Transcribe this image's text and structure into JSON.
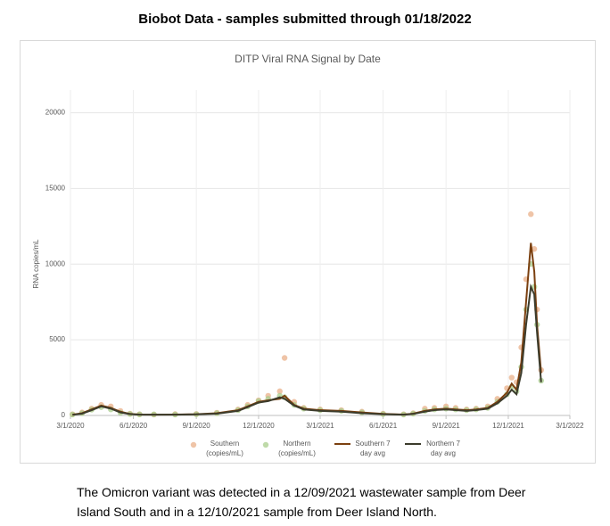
{
  "header": {
    "title": "Biobot Data - samples submitted through 01/18/2022"
  },
  "chart_data": {
    "type": "line",
    "title": "DITP Viral RNA Signal by Date",
    "y_label": "RNA copies/mL",
    "x": [
      "3/4/2020",
      "3/18/2020",
      "4/1/2020",
      "4/15/2020",
      "4/29/2020",
      "5/13/2020",
      "5/27/2020",
      "6/10/2020",
      "7/1/2020",
      "8/1/2020",
      "9/1/2020",
      "10/1/2020",
      "11/1/2020",
      "11/15/2020",
      "12/1/2020",
      "12/15/2020",
      "1/1/2021",
      "1/8/2021",
      "1/22/2021",
      "2/5/2021",
      "3/1/2021",
      "4/1/2021",
      "5/1/2021",
      "6/1/2021",
      "7/1/2021",
      "7/15/2021",
      "8/1/2021",
      "8/15/2021",
      "9/1/2021",
      "9/15/2021",
      "10/1/2021",
      "10/15/2021",
      "11/1/2021",
      "11/15/2021",
      "11/29/2021",
      "12/6/2021",
      "12/13/2021",
      "12/20/2021",
      "12/27/2021",
      "1/3/2022",
      "1/8/2022",
      "1/12/2022",
      "1/18/2022"
    ],
    "series": [
      {
        "name": "Southern (copies/mL)",
        "type": "scatter",
        "color": "#eab08a",
        "values": [
          80,
          200,
          450,
          700,
          600,
          300,
          120,
          80,
          60,
          90,
          100,
          180,
          400,
          700,
          1000,
          1300,
          1600,
          3800,
          900,
          500,
          400,
          350,
          250,
          120,
          80,
          150,
          450,
          500,
          600,
          500,
          400,
          450,
          600,
          1100,
          1800,
          2500,
          2200,
          4500,
          9000,
          13300,
          11000,
          7000,
          3000
        ]
      },
      {
        "name": "Northern (copies/mL)",
        "type": "scatter",
        "color": "#a9cd8c",
        "values": [
          60,
          150,
          380,
          550,
          400,
          180,
          100,
          70,
          70,
          60,
          80,
          150,
          350,
          600,
          950,
          1100,
          1300,
          1200,
          700,
          450,
          350,
          300,
          200,
          90,
          60,
          120,
          300,
          400,
          450,
          400,
          350,
          400,
          500,
          900,
          1400,
          1900,
          1600,
          3200,
          7000,
          10000,
          8500,
          6000,
          2300
        ]
      },
      {
        "name": "Southern 7 day avg",
        "type": "line",
        "color": "#7b4010",
        "values": [
          50,
          150,
          400,
          650,
          500,
          250,
          100,
          60,
          50,
          60,
          80,
          150,
          350,
          600,
          900,
          1000,
          1100,
          1300,
          700,
          450,
          350,
          300,
          200,
          100,
          60,
          120,
          300,
          400,
          450,
          400,
          350,
          400,
          500,
          900,
          1500,
          2100,
          1700,
          3500,
          7500,
          11400,
          9500,
          6000,
          2800
        ]
      },
      {
        "name": "Northern 7 day avg",
        "type": "line",
        "color": "#3c3c2c",
        "values": [
          40,
          120,
          350,
          600,
          450,
          200,
          90,
          50,
          50,
          50,
          70,
          120,
          300,
          550,
          850,
          950,
          1200,
          1100,
          650,
          400,
          300,
          250,
          150,
          80,
          50,
          100,
          250,
          350,
          400,
          350,
          300,
          350,
          450,
          800,
          1300,
          1700,
          1400,
          2800,
          6000,
          8500,
          8000,
          5500,
          2200
        ]
      }
    ],
    "xlim": [
      "3/1/2020",
      "3/1/2022"
    ],
    "xticks": [
      "3/1/2020",
      "6/1/2020",
      "9/1/2020",
      "12/1/2020",
      "3/1/2021",
      "6/1/2021",
      "9/1/2021",
      "12/1/2021",
      "3/1/2022"
    ],
    "ylim": [
      0,
      21500
    ],
    "yticks": [
      0,
      5000,
      10000,
      15000,
      20000
    ],
    "grid": true
  },
  "caption": "The Omicron variant was detected in a 12/09/2021 wastewater sample from Deer Island South and in a 12/10/2021 sample from Deer Island North."
}
